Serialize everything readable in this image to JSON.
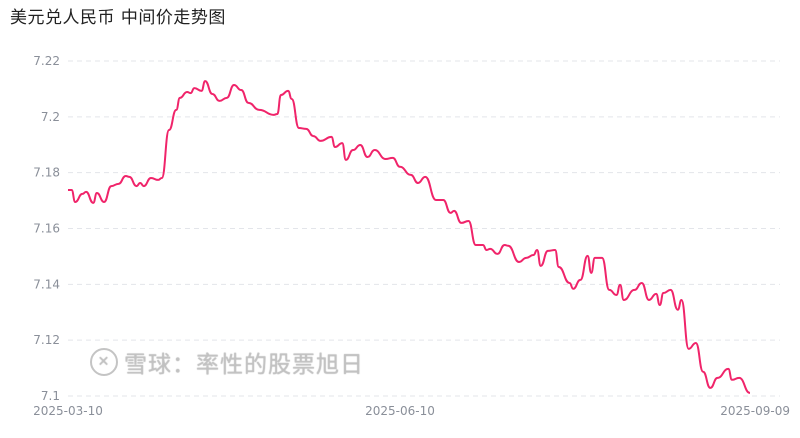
{
  "chart_data": {
    "type": "line",
    "title": "美元兑人民币 中间价走势图",
    "xlabel": "",
    "ylabel": "",
    "ylim": [
      7.1,
      7.22
    ],
    "yticks": [
      "7.1",
      "7.12",
      "7.14",
      "7.16",
      "7.18",
      "7.2",
      "7.22"
    ],
    "xticks": [
      "2025-03-10",
      "2025-06-10",
      "2025-09-09"
    ],
    "xlim": [
      "2025-03-10",
      "2025-09-15"
    ],
    "grid": true,
    "line_color": "#f0246a",
    "points": [
      [
        "2025-03-10",
        7.1738
      ],
      [
        "2025-03-11",
        7.1738
      ],
      [
        "2025-03-12",
        7.1695
      ],
      [
        "2025-03-14",
        7.1724
      ],
      [
        "2025-03-15",
        7.1731
      ],
      [
        "2025-03-17",
        7.1692
      ],
      [
        "2025-03-18",
        7.1727
      ],
      [
        "2025-03-20",
        7.1695
      ],
      [
        "2025-03-22",
        7.1752
      ],
      [
        "2025-03-24",
        7.176
      ],
      [
        "2025-03-26",
        7.1788
      ],
      [
        "2025-03-27",
        7.1785
      ],
      [
        "2025-03-29",
        7.1752
      ],
      [
        "2025-03-30",
        7.1763
      ],
      [
        "2025-03-31",
        7.1752
      ],
      [
        "2025-04-02",
        7.1781
      ],
      [
        "2025-04-04",
        7.1774
      ],
      [
        "2025-04-05",
        7.1781
      ],
      [
        "2025-04-07",
        7.1953
      ],
      [
        "2025-04-09",
        7.2025
      ],
      [
        "2025-04-10",
        7.2068
      ],
      [
        "2025-04-12",
        7.2089
      ],
      [
        "2025-04-13",
        7.2085
      ],
      [
        "2025-04-14",
        7.2103
      ],
      [
        "2025-04-16",
        7.2093
      ],
      [
        "2025-04-17",
        7.2128
      ],
      [
        "2025-04-19",
        7.2082
      ],
      [
        "2025-04-21",
        7.2057
      ],
      [
        "2025-04-23",
        7.2068
      ],
      [
        "2025-04-25",
        7.2114
      ],
      [
        "2025-04-27",
        7.2096
      ],
      [
        "2025-04-29",
        7.205
      ],
      [
        "2025-05-02",
        7.2025
      ],
      [
        "2025-05-06",
        7.2007
      ],
      [
        "2025-05-07",
        7.201
      ],
      [
        "2025-05-08",
        7.2078
      ],
      [
        "2025-05-10",
        7.2093
      ],
      [
        "2025-05-11",
        7.2064
      ],
      [
        "2025-05-13",
        7.196
      ],
      [
        "2025-05-15",
        7.1957
      ],
      [
        "2025-05-17",
        7.1931
      ],
      [
        "2025-05-19",
        7.1914
      ],
      [
        "2025-05-22",
        7.1928
      ],
      [
        "2025-05-23",
        7.1892
      ],
      [
        "2025-05-25",
        7.1906
      ],
      [
        "2025-05-26",
        7.1846
      ],
      [
        "2025-05-28",
        7.1881
      ],
      [
        "2025-05-30",
        7.1899
      ],
      [
        "2025-06-01",
        7.1856
      ],
      [
        "2025-06-03",
        7.1881
      ],
      [
        "2025-06-06",
        7.1849
      ],
      [
        "2025-06-08",
        7.1853
      ],
      [
        "2025-06-10",
        7.1821
      ],
      [
        "2025-06-13",
        7.1792
      ],
      [
        "2025-06-15",
        7.1763
      ],
      [
        "2025-06-17",
        7.1785
      ],
      [
        "2025-06-20",
        7.1702
      ],
      [
        "2025-06-22",
        7.1702
      ],
      [
        "2025-06-24",
        7.1656
      ],
      [
        "2025-06-25",
        7.1663
      ],
      [
        "2025-06-27",
        7.162
      ],
      [
        "2025-06-29",
        7.1627
      ],
      [
        "2025-07-01",
        7.1541
      ],
      [
        "2025-07-03",
        7.1541
      ],
      [
        "2025-07-04",
        7.1523
      ],
      [
        "2025-07-05",
        7.1527
      ],
      [
        "2025-07-07",
        7.1509
      ],
      [
        "2025-07-09",
        7.1541
      ],
      [
        "2025-07-10",
        7.1538
      ],
      [
        "2025-07-13",
        7.148
      ],
      [
        "2025-07-15",
        7.1495
      ],
      [
        "2025-07-17",
        7.1505
      ],
      [
        "2025-07-18",
        7.1523
      ],
      [
        "2025-07-19",
        7.1466
      ],
      [
        "2025-07-21",
        7.152
      ],
      [
        "2025-07-23",
        7.1523
      ],
      [
        "2025-07-24",
        7.1462
      ],
      [
        "2025-07-27",
        7.1405
      ],
      [
        "2025-07-28",
        7.1384
      ],
      [
        "2025-07-30",
        7.1416
      ],
      [
        "2025-08-01",
        7.1502
      ],
      [
        "2025-08-02",
        7.1441
      ],
      [
        "2025-08-03",
        7.1495
      ],
      [
        "2025-08-05",
        7.1495
      ],
      [
        "2025-08-07",
        7.138
      ],
      [
        "2025-08-09",
        7.1362
      ],
      [
        "2025-08-10",
        7.1398
      ],
      [
        "2025-08-11",
        7.1344
      ],
      [
        "2025-08-14",
        7.138
      ],
      [
        "2025-08-16",
        7.1405
      ],
      [
        "2025-08-18",
        7.1344
      ],
      [
        "2025-08-20",
        7.1366
      ],
      [
        "2025-08-21",
        7.1326
      ],
      [
        "2025-08-22",
        7.1369
      ],
      [
        "2025-08-24",
        7.138
      ],
      [
        "2025-08-26",
        7.1309
      ],
      [
        "2025-08-27",
        7.1344
      ],
      [
        "2025-08-29",
        7.1169
      ],
      [
        "2025-08-31",
        7.119
      ],
      [
        "2025-09-02",
        7.1087
      ],
      [
        "2025-09-04",
        7.1029
      ],
      [
        "2025-09-06",
        7.1065
      ],
      [
        "2025-09-09",
        7.1097
      ],
      [
        "2025-09-10",
        7.1058
      ],
      [
        "2025-09-12",
        7.1065
      ],
      [
        "2025-09-15",
        7.1011
      ]
    ]
  },
  "watermark": {
    "logo": "雪球 logo",
    "text": "雪球：率性的股票旭日"
  }
}
